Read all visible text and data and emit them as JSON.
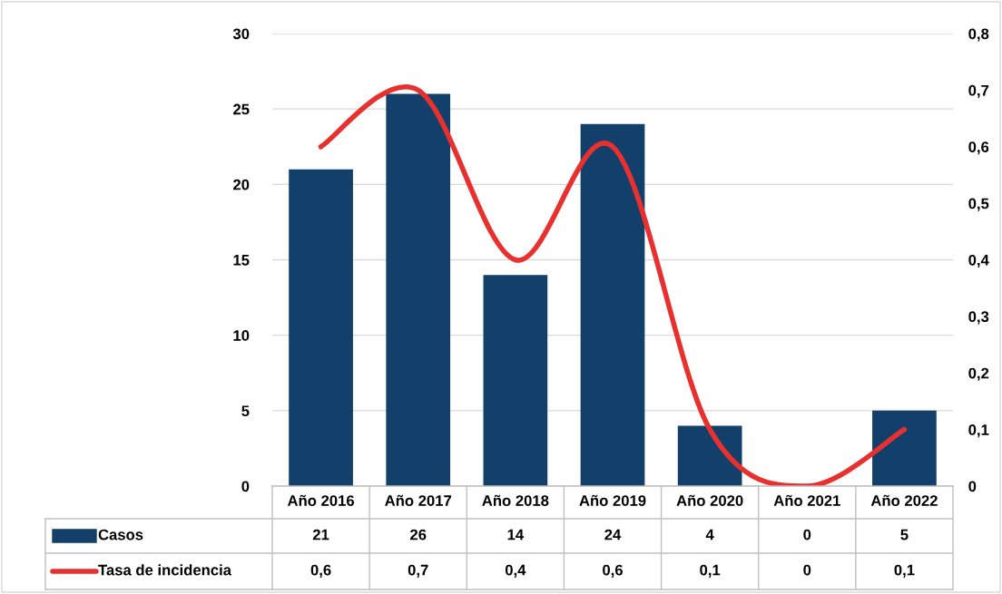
{
  "chart_data": {
    "type": "bar",
    "categories": [
      "Año 2016",
      "Año 2017",
      "Año 2018",
      "Año 2019",
      "Año 2020",
      "Año 2021",
      "Año 2022"
    ],
    "series": [
      {
        "name": "Casos",
        "color": "#133f6b",
        "values": [
          21,
          26,
          14,
          24,
          4,
          0,
          5
        ],
        "value_labels": [
          "21",
          "26",
          "14",
          "24",
          "4",
          "0",
          "5"
        ]
      },
      {
        "name": "Tasa de incidencia",
        "type": "line",
        "axis": "y2",
        "color": "#e8302f",
        "values": [
          0.6,
          0.7,
          0.4,
          0.6,
          0.1,
          0,
          0.1
        ],
        "value_labels": [
          "0,6",
          "0,7",
          "0,4",
          "0,6",
          "0,1",
          "0",
          "0,1"
        ]
      }
    ],
    "ylim": [
      0,
      30
    ],
    "yticks": [
      0,
      5,
      10,
      15,
      20,
      25,
      30
    ],
    "y2lim": [
      0,
      0.8
    ],
    "y2ticks": [
      0,
      {
        "value": 0.1,
        "label": "0,1"
      },
      {
        "value": 0.2,
        "label": "0,2"
      },
      {
        "value": 0.3,
        "label": "0,3"
      },
      {
        "value": 0.4,
        "label": "0,4"
      },
      {
        "value": 0.5,
        "label": "0,5"
      },
      {
        "value": 0.6,
        "label": "0,6"
      },
      {
        "value": 0.7,
        "label": "0,7"
      },
      {
        "value": 0.8,
        "label": "0,8"
      }
    ],
    "grid": "y",
    "legend": "bottom"
  }
}
